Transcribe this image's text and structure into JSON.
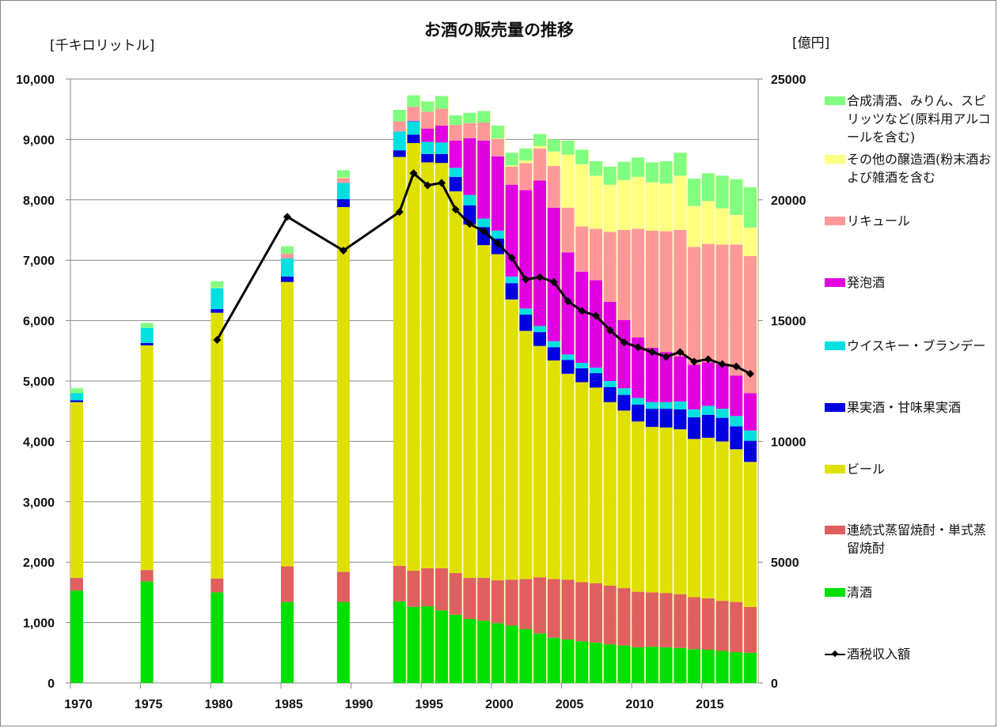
{
  "chart_data": {
    "type": "bar",
    "stacked": true,
    "title": "お酒の販売量の推移",
    "ylabel_left": "[千キロリットル]",
    "ylabel_right": "[億円]",
    "xlabel": "",
    "ylim_left": [
      0,
      10000
    ],
    "ylim_right": [
      0,
      25000
    ],
    "yticks_left": [
      "0",
      "1,000",
      "2,000",
      "3,000",
      "4,000",
      "5,000",
      "6,000",
      "7,000",
      "8,000",
      "9,000",
      "10,000"
    ],
    "yticks_right": [
      "0",
      "5000",
      "10000",
      "15000",
      "20000",
      "25000"
    ],
    "xticks": [
      "1970",
      "1975",
      "1980",
      "1985",
      "1990",
      "1995",
      "2000",
      "2005",
      "2010",
      "2015"
    ],
    "xlim": [
      1969.5,
      2018.5
    ],
    "grid": true,
    "legend_position": "right",
    "years": [
      1970,
      1975,
      1980,
      1985,
      1989,
      1993,
      1994,
      1995,
      1996,
      1997,
      1998,
      1999,
      2000,
      2001,
      2002,
      2003,
      2004,
      2005,
      2006,
      2007,
      2008,
      2009,
      2010,
      2011,
      2012,
      2013,
      2014,
      2015,
      2016,
      2017,
      2018
    ],
    "series": [
      {
        "name": "清酒",
        "color": "#00e000",
        "axis": "left",
        "values": [
          1530,
          1680,
          1500,
          1340,
          1340,
          1350,
          1260,
          1270,
          1200,
          1130,
          1060,
          1030,
          990,
          950,
          890,
          820,
          750,
          720,
          690,
          670,
          640,
          620,
          590,
          600,
          590,
          580,
          560,
          550,
          530,
          510,
          500
        ]
      },
      {
        "name": "連続式蒸留焼酎・単式蒸留焼酎",
        "color": "#e06060",
        "axis": "left",
        "values": [
          210,
          190,
          230,
          590,
          500,
          590,
          600,
          630,
          700,
          690,
          680,
          710,
          710,
          760,
          830,
          930,
          970,
          990,
          980,
          980,
          970,
          950,
          920,
          900,
          900,
          890,
          860,
          850,
          830,
          830,
          760
        ]
      },
      {
        "name": "ビール",
        "color": "#e0e000",
        "axis": "left",
        "values": [
          2910,
          3720,
          4400,
          4710,
          6040,
          6770,
          7080,
          6720,
          6710,
          6320,
          5850,
          5510,
          5400,
          4640,
          4110,
          3830,
          3620,
          3410,
          3310,
          3240,
          3040,
          2940,
          2820,
          2740,
          2740,
          2730,
          2620,
          2660,
          2640,
          2530,
          2400
        ]
      },
      {
        "name": "果実酒・甘味果実酒",
        "color": "#0000e0",
        "axis": "left",
        "values": [
          30,
          40,
          60,
          90,
          130,
          110,
          140,
          140,
          150,
          240,
          320,
          300,
          260,
          270,
          270,
          230,
          220,
          230,
          230,
          240,
          250,
          260,
          280,
          300,
          310,
          330,
          360,
          380,
          390,
          380,
          350
        ]
      },
      {
        "name": "ウイスキー・ブランデー",
        "color": "#00e0e0",
        "axis": "left",
        "values": [
          120,
          250,
          350,
          300,
          270,
          310,
          220,
          200,
          190,
          150,
          170,
          140,
          130,
          110,
          100,
          100,
          100,
          90,
          90,
          90,
          100,
          110,
          110,
          110,
          110,
          130,
          130,
          150,
          150,
          170,
          170
        ]
      },
      {
        "name": "発泡酒",
        "color": "#e000e0",
        "axis": "left",
        "values": [
          0,
          0,
          0,
          0,
          0,
          0,
          10,
          220,
          280,
          450,
          940,
          1290,
          1230,
          1520,
          1960,
          2410,
          2210,
          1690,
          1510,
          1450,
          1310,
          1130,
          1000,
          900,
          830,
          750,
          740,
          720,
          740,
          670,
          620
        ]
      },
      {
        "name": "リキュール",
        "color": "#ff9999",
        "axis": "left",
        "values": [
          0,
          0,
          0,
          80,
          80,
          170,
          230,
          280,
          280,
          260,
          250,
          300,
          290,
          300,
          450,
          530,
          690,
          740,
          750,
          850,
          1160,
          1490,
          1800,
          1940,
          2000,
          2090,
          1950,
          1960,
          1980,
          2170,
          2270
        ]
      },
      {
        "name": "その他の醸造酒(粉末酒および雑酒を含む",
        "color": "#ffff80",
        "axis": "left",
        "values": [
          0,
          0,
          10,
          0,
          10,
          0,
          0,
          0,
          0,
          0,
          0,
          0,
          10,
          20,
          40,
          40,
          240,
          880,
          1030,
          880,
          780,
          830,
          860,
          800,
          790,
          900,
          680,
          710,
          600,
          490,
          470
        ]
      },
      {
        "name": "合成清酒、みりん、スピリッツなど(原料用アルコールを含む)",
        "color": "#80ff80",
        "axis": "left",
        "values": [
          80,
          80,
          100,
          120,
          120,
          190,
          190,
          170,
          210,
          160,
          170,
          190,
          210,
          210,
          200,
          200,
          200,
          230,
          240,
          240,
          300,
          300,
          320,
          330,
          370,
          380,
          450,
          460,
          540,
          590,
          670
        ]
      }
    ],
    "line_series": {
      "name": "酒税収入額",
      "color": "#000000",
      "axis": "right",
      "marker": "diamond",
      "years": [
        1980,
        1985,
        1989,
        1993,
        1994,
        1995,
        1996,
        1997,
        1998,
        1999,
        2000,
        2001,
        2002,
        2003,
        2004,
        2005,
        2006,
        2007,
        2008,
        2009,
        2010,
        2011,
        2012,
        2013,
        2014,
        2015,
        2016,
        2017,
        2018
      ],
      "values": [
        14200,
        19300,
        17900,
        19500,
        21100,
        20600,
        20700,
        19600,
        19000,
        18700,
        18200,
        17600,
        16700,
        16800,
        16600,
        15800,
        15400,
        15200,
        14600,
        14100,
        13900,
        13700,
        13500,
        13700,
        13300,
        13400,
        13200,
        13100,
        12800
      ]
    }
  },
  "legend": [
    {
      "label": "合成清酒、みりん、スピリッツなど(原料用アルコールを含む)",
      "color": "#80ff80",
      "kind": "bar"
    },
    {
      "label": "その他の醸造酒(粉末酒および雑酒を含む",
      "color": "#ffff80",
      "kind": "bar"
    },
    {
      "label": "リキュール",
      "color": "#ff9999",
      "kind": "bar"
    },
    {
      "label": "発泡酒",
      "color": "#e000e0",
      "kind": "bar"
    },
    {
      "label": "ウイスキー・ブランデー",
      "color": "#00e0e0",
      "kind": "bar"
    },
    {
      "label": "果実酒・甘味果実酒",
      "color": "#0000e0",
      "kind": "bar"
    },
    {
      "label": "ビール",
      "color": "#e0e000",
      "kind": "bar"
    },
    {
      "label": "連続式蒸留焼酎・単式蒸留焼酎",
      "color": "#e06060",
      "kind": "bar"
    },
    {
      "label": "清酒",
      "color": "#00e000",
      "kind": "bar"
    },
    {
      "label": "酒税収入額",
      "color": "#000000",
      "kind": "line"
    }
  ]
}
